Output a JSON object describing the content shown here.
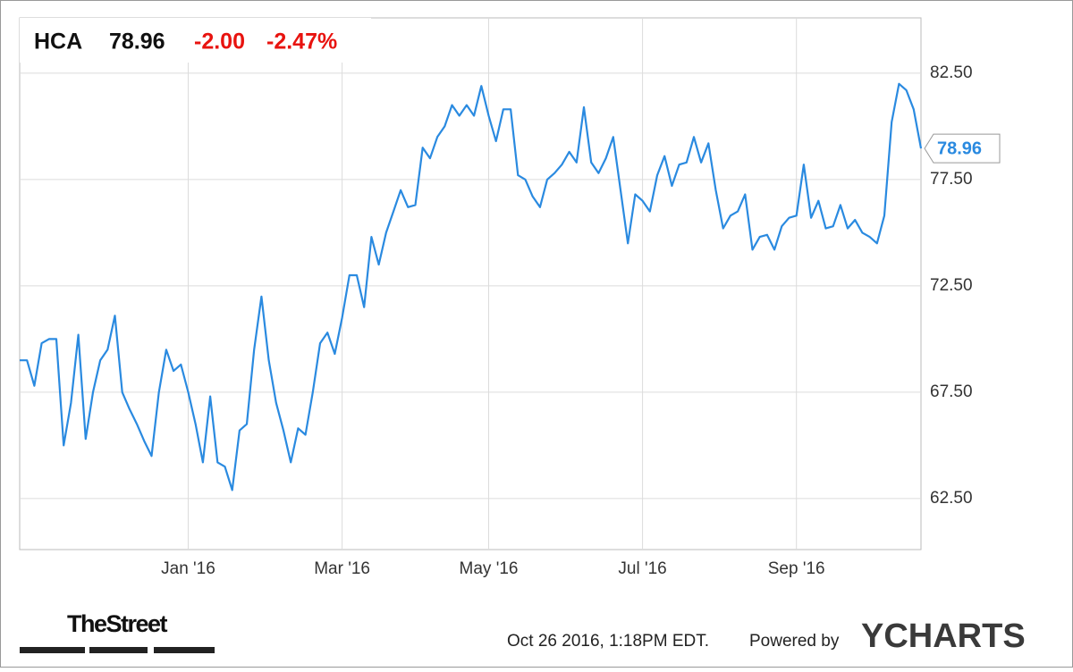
{
  "chart_data": {
    "type": "line",
    "header": {
      "ticker": "HCA",
      "price": "78.96",
      "change": "-2.00",
      "change_pct": "-2.47%"
    },
    "categories": [
      null,
      null,
      null,
      null,
      null,
      null,
      null,
      null,
      null,
      null,
      null,
      null,
      null,
      null,
      null,
      null,
      null,
      null,
      null,
      null,
      null,
      null,
      null,
      "Jan '16",
      null,
      null,
      null,
      null,
      null,
      null,
      null,
      null,
      null,
      null,
      null,
      null,
      null,
      null,
      null,
      null,
      null,
      null,
      null,
      null,
      "Mar '16",
      null,
      null,
      null,
      null,
      null,
      null,
      null,
      null,
      null,
      null,
      null,
      null,
      null,
      null,
      null,
      null,
      null,
      null,
      null,
      "May '16",
      null,
      null,
      null,
      null,
      null,
      null,
      null,
      null,
      null,
      null,
      null,
      null,
      null,
      null,
      null,
      null,
      null,
      null,
      null,
      null,
      "Jul '16",
      null,
      null,
      null,
      null,
      null,
      null,
      null,
      null,
      null,
      null,
      null,
      null,
      null,
      null,
      null,
      null,
      null,
      null,
      null,
      null,
      "Sep '16",
      null,
      null,
      null,
      null,
      null,
      null,
      null,
      null,
      null,
      null,
      null,
      null,
      null,
      null,
      null,
      null,
      null
    ],
    "series": [
      {
        "name": "HCA",
        "color": "#2a8ae0",
        "values": [
          69.0,
          69.0,
          67.8,
          69.8,
          70.0,
          70.0,
          65.0,
          67.0,
          70.2,
          65.3,
          67.5,
          69.0,
          69.5,
          71.1,
          67.5,
          66.7,
          66.0,
          65.2,
          64.5,
          67.5,
          69.5,
          68.5,
          68.8,
          67.5,
          66.0,
          64.2,
          67.3,
          64.2,
          64.0,
          62.9,
          65.7,
          66.0,
          69.5,
          72.0,
          69.0,
          67.0,
          65.7,
          64.2,
          65.8,
          65.5,
          67.5,
          69.8,
          70.3,
          69.3,
          71.0,
          73.0,
          73.0,
          71.5,
          74.8,
          73.5,
          75.0,
          76.0,
          77.0,
          76.2,
          76.3,
          79.0,
          78.5,
          79.5,
          80.0,
          81.0,
          80.5,
          81.0,
          80.5,
          81.9,
          80.5,
          79.3,
          80.8,
          80.8,
          77.7,
          77.5,
          76.7,
          76.2,
          77.5,
          77.8,
          78.2,
          78.8,
          78.3,
          80.9,
          78.3,
          77.8,
          78.5,
          79.5,
          77.0,
          74.5,
          76.8,
          76.5,
          76.0,
          77.7,
          78.6,
          77.2,
          78.2,
          78.3,
          79.5,
          78.3,
          79.2,
          77.0,
          75.2,
          75.8,
          76.0,
          76.8,
          74.2,
          74.8,
          74.9,
          74.2,
          75.3,
          75.7,
          75.8,
          78.2,
          75.7,
          76.5,
          75.2,
          75.3,
          76.3,
          75.2,
          75.6,
          75.0,
          74.8,
          74.5,
          75.8,
          80.2,
          82.0,
          81.7,
          80.8,
          78.96
        ]
      }
    ],
    "ylim": [
      60.1,
      85.1
    ],
    "yticks": [
      {
        "value": 62.5,
        "label": "62.50"
      },
      {
        "value": 67.5,
        "label": "67.50"
      },
      {
        "value": 72.5,
        "label": "72.50"
      },
      {
        "value": 77.5,
        "label": "77.50"
      },
      {
        "value": 82.5,
        "label": "82.50"
      }
    ],
    "grid": true
  },
  "footer": {
    "brand": "TheStreet",
    "timestamp": "Oct 26 2016, 1:18PM EDT.",
    "powered": "Powered by",
    "logo": "YCHARTS"
  }
}
